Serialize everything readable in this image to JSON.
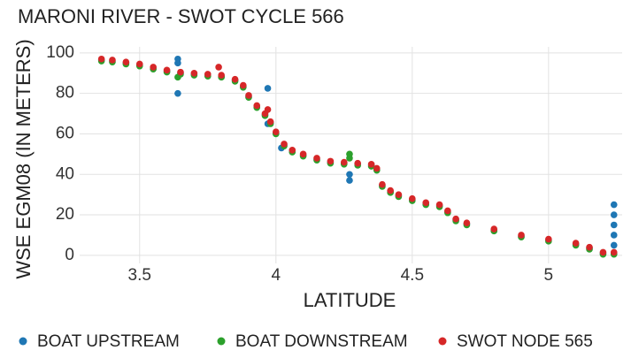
{
  "chart_data": {
    "type": "scatter",
    "title": "MARONI RIVER - SWOT CYCLE 566",
    "x_label": "LATITUDE",
    "y_label": "WSE EGM08 (IN METERS)",
    "xlim": [
      3.28,
      5.27
    ],
    "ylim": [
      -4,
      103
    ],
    "xticks": [
      3.5,
      4,
      {
        "value": 4.5,
        "label": "4.5"
      },
      5
    ],
    "yticks": [
      0,
      20,
      40,
      60,
      80,
      100
    ],
    "grid": true,
    "legend": "bottom",
    "series": [
      {
        "name": "BOAT UPSTREAM",
        "color": "#1f77b4",
        "x": [
          3.36,
          3.4,
          3.45,
          3.5,
          3.55,
          3.6,
          3.65,
          3.7,
          3.75,
          3.8,
          3.85,
          3.88,
          3.9,
          3.93,
          3.96,
          3.98,
          4.0,
          4.03,
          4.06,
          4.1,
          4.15,
          4.2,
          4.25,
          4.3,
          4.35,
          4.37,
          4.39,
          4.42,
          4.45,
          4.5,
          4.55,
          4.6,
          4.63,
          4.66,
          4.7,
          4.8,
          4.9,
          5.0,
          5.1,
          5.15,
          5.2,
          5.24,
          3.64,
          3.64,
          3.64,
          3.97,
          3.97,
          4.02,
          4.27,
          4.27,
          5.24,
          5.24,
          5.24,
          5.24,
          5.24
        ],
        "values": [
          96.5,
          96,
          95,
          94,
          92.5,
          91,
          90,
          89.5,
          89,
          88.5,
          86.5,
          83.5,
          78.5,
          73.5,
          69.5,
          65.5,
          60.5,
          54.5,
          51.5,
          49.5,
          47.5,
          46,
          45.5,
          45,
          44.5,
          42.5,
          34.5,
          31.5,
          29.5,
          27.5,
          25.5,
          24.5,
          21.5,
          17.5,
          15.5,
          12.5,
          9.5,
          7.5,
          5.5,
          3.5,
          1,
          1,
          80,
          95,
          97,
          82.5,
          65,
          53,
          37,
          40,
          5,
          10,
          15,
          20,
          25
        ]
      },
      {
        "name": "BOAT DOWNSTREAM",
        "color": "#2ca02c",
        "x": [
          3.36,
          3.4,
          3.45,
          3.5,
          3.55,
          3.6,
          3.65,
          3.7,
          3.75,
          3.8,
          3.85,
          3.88,
          3.9,
          3.93,
          3.96,
          3.98,
          4.0,
          4.03,
          4.06,
          4.1,
          4.15,
          4.2,
          4.25,
          4.3,
          4.35,
          4.37,
          4.39,
          4.42,
          4.45,
          4.5,
          4.55,
          4.6,
          4.63,
          4.66,
          4.7,
          4.8,
          4.9,
          5.0,
          5.1,
          5.15,
          5.2,
          5.24,
          3.64,
          4.27,
          4.27
        ],
        "values": [
          96,
          95.5,
          94.5,
          93.5,
          92,
          90.5,
          89.5,
          89,
          88.5,
          88,
          86,
          83,
          78,
          73,
          69,
          65,
          60,
          54,
          51,
          49,
          47,
          45.5,
          45,
          44.5,
          44,
          42,
          34,
          31,
          29,
          27,
          25,
          24,
          21,
          17,
          15,
          12,
          9,
          7,
          5,
          3,
          0.5,
          0.5,
          88,
          50,
          48
        ]
      },
      {
        "name": "SWOT NODE 565",
        "color": "#d62728",
        "x": [
          3.36,
          3.4,
          3.45,
          3.5,
          3.55,
          3.6,
          3.65,
          3.7,
          3.75,
          3.8,
          3.85,
          3.88,
          3.9,
          3.93,
          3.96,
          3.98,
          4.0,
          4.03,
          4.06,
          4.1,
          4.15,
          4.2,
          4.25,
          4.3,
          4.35,
          4.37,
          4.39,
          4.42,
          4.45,
          4.5,
          4.55,
          4.6,
          4.63,
          4.66,
          4.7,
          4.8,
          4.9,
          5.0,
          5.1,
          5.15,
          5.2,
          5.24,
          3.79,
          3.97
        ],
        "values": [
          97,
          96.5,
          95.5,
          94.5,
          93,
          91.5,
          90.5,
          90,
          89.5,
          89,
          87,
          84,
          79,
          74,
          70,
          66,
          61,
          55,
          52,
          50,
          48,
          46.5,
          46,
          45.5,
          45,
          43,
          35,
          32,
          30,
          28,
          26,
          25,
          22,
          18,
          16,
          13,
          10,
          8,
          6,
          4,
          1.5,
          1.5,
          93,
          72
        ]
      }
    ]
  }
}
